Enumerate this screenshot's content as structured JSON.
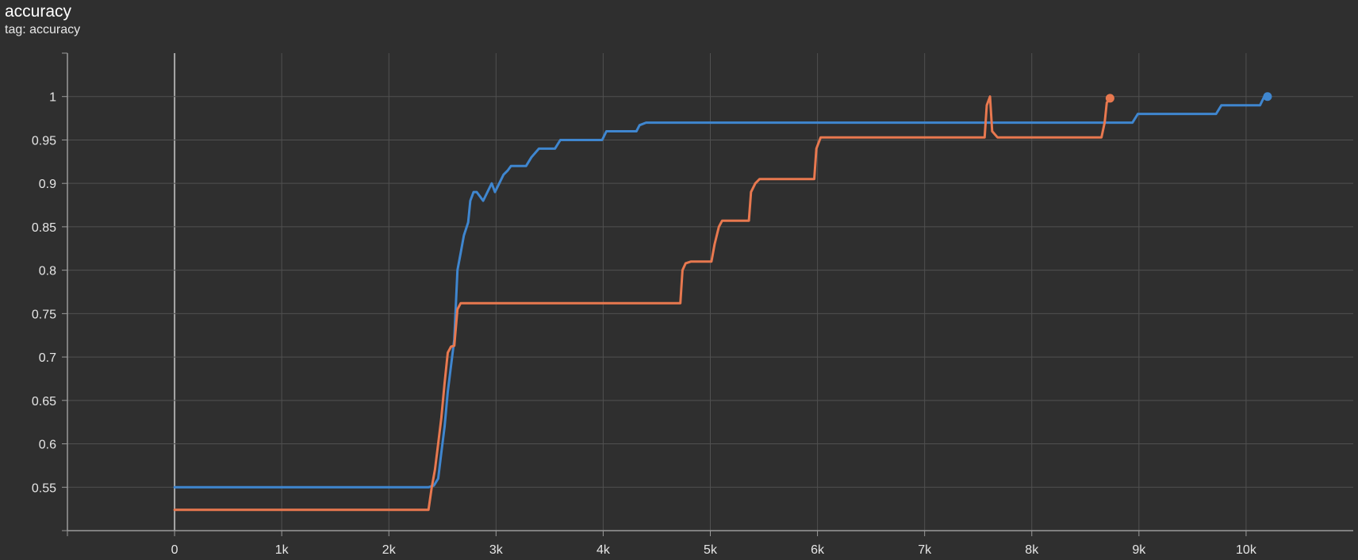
{
  "card": {
    "title": "accuracy",
    "tag_label": "tag: accuracy"
  },
  "chart_data": {
    "type": "line",
    "title": "accuracy",
    "xlim": [
      -1000,
      11000
    ],
    "ylim": [
      0.5,
      1.05
    ],
    "x_ticks": [
      0,
      1000,
      2000,
      3000,
      4000,
      5000,
      6000,
      7000,
      8000,
      9000,
      10000
    ],
    "x_tick_labels": [
      "0",
      "1k",
      "2k",
      "3k",
      "4k",
      "5k",
      "6k",
      "7k",
      "8k",
      "9k",
      "10k"
    ],
    "y_ticks": [
      0.55,
      0.6,
      0.65,
      0.7,
      0.75,
      0.8,
      0.85,
      0.9,
      0.95,
      1
    ],
    "y_tick_labels": [
      "0.55",
      "0.6",
      "0.65",
      "0.7",
      "0.75",
      "0.8",
      "0.85",
      "0.9",
      "0.95",
      "1"
    ],
    "grid": true,
    "colors": {
      "background": "#2f2f2f",
      "grid": "#505050",
      "axis": "#9a9a9a"
    },
    "series": [
      {
        "color": "#3f86cf",
        "points": [
          [
            0,
            0.55
          ],
          [
            2370,
            0.55
          ],
          [
            2420,
            0.552
          ],
          [
            2460,
            0.56
          ],
          [
            2490,
            0.59
          ],
          [
            2520,
            0.62
          ],
          [
            2550,
            0.66
          ],
          [
            2580,
            0.69
          ],
          [
            2610,
            0.72
          ],
          [
            2640,
            0.8
          ],
          [
            2670,
            0.82
          ],
          [
            2700,
            0.84
          ],
          [
            2740,
            0.855
          ],
          [
            2760,
            0.88
          ],
          [
            2790,
            0.89
          ],
          [
            2820,
            0.89
          ],
          [
            2850,
            0.885
          ],
          [
            2880,
            0.88
          ],
          [
            2920,
            0.89
          ],
          [
            2960,
            0.9
          ],
          [
            2990,
            0.89
          ],
          [
            3030,
            0.9
          ],
          [
            3070,
            0.91
          ],
          [
            3110,
            0.915
          ],
          [
            3140,
            0.92
          ],
          [
            3280,
            0.92
          ],
          [
            3330,
            0.93
          ],
          [
            3400,
            0.94
          ],
          [
            3550,
            0.94
          ],
          [
            3600,
            0.95
          ],
          [
            3990,
            0.95
          ],
          [
            4030,
            0.96
          ],
          [
            4310,
            0.96
          ],
          [
            4340,
            0.967
          ],
          [
            4400,
            0.97
          ],
          [
            8940,
            0.97
          ],
          [
            8990,
            0.98
          ],
          [
            9720,
            0.98
          ],
          [
            9770,
            0.99
          ],
          [
            10130,
            0.99
          ],
          [
            10170,
            1.0
          ],
          [
            10200,
            1.0
          ]
        ]
      },
      {
        "color": "#e8784f",
        "points": [
          [
            0,
            0.524
          ],
          [
            2370,
            0.524
          ],
          [
            2400,
            0.55
          ],
          [
            2430,
            0.57
          ],
          [
            2460,
            0.6
          ],
          [
            2490,
            0.63
          ],
          [
            2520,
            0.67
          ],
          [
            2550,
            0.705
          ],
          [
            2580,
            0.712
          ],
          [
            2610,
            0.713
          ],
          [
            2640,
            0.755
          ],
          [
            2670,
            0.762
          ],
          [
            4720,
            0.762
          ],
          [
            4740,
            0.8
          ],
          [
            4770,
            0.808
          ],
          [
            4820,
            0.81
          ],
          [
            5010,
            0.81
          ],
          [
            5040,
            0.83
          ],
          [
            5080,
            0.85
          ],
          [
            5110,
            0.857
          ],
          [
            5360,
            0.857
          ],
          [
            5380,
            0.89
          ],
          [
            5420,
            0.9
          ],
          [
            5460,
            0.905
          ],
          [
            5970,
            0.905
          ],
          [
            5990,
            0.94
          ],
          [
            6030,
            0.953
          ],
          [
            7560,
            0.953
          ],
          [
            7580,
            0.99
          ],
          [
            7610,
            1.0
          ],
          [
            7630,
            0.96
          ],
          [
            7680,
            0.953
          ],
          [
            8650,
            0.953
          ],
          [
            8680,
            0.97
          ],
          [
            8700,
            0.993
          ],
          [
            8730,
            0.998
          ]
        ]
      }
    ]
  }
}
